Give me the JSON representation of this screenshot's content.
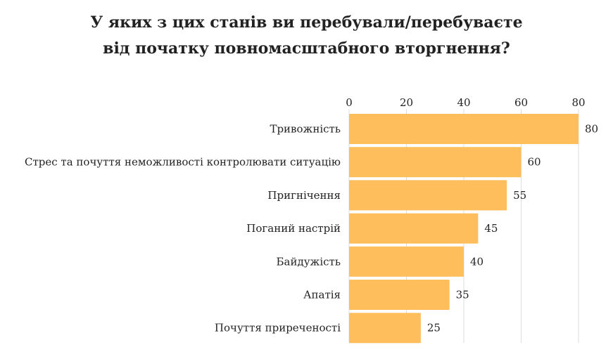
{
  "chart_data": {
    "type": "bar",
    "orientation": "horizontal",
    "title": "У яких з цих станів ви перебували/перебуваєте від початку повномасштабного вторгнення?",
    "title_lines": [
      "У яких з цих станів ви перебували/перебуваєте",
      "від початку повномасштабного вторгнення?"
    ],
    "categories": [
      "Тривожність",
      "Стрес та почуття неможливості контролювати ситуацію",
      "Пригнічення",
      "Поганий настрій",
      "Байдужість",
      "Апатія",
      "Почуття приреченості"
    ],
    "values": [
      80,
      60,
      55,
      45,
      40,
      35,
      25
    ],
    "xlim": [
      0,
      80
    ],
    "xticks": [
      0,
      20,
      40,
      60,
      80
    ],
    "xaxis_position": "top",
    "grid": true,
    "data_labels": true,
    "bar_color": "#FDBE5B",
    "grid_color": "#DDDDDD"
  }
}
